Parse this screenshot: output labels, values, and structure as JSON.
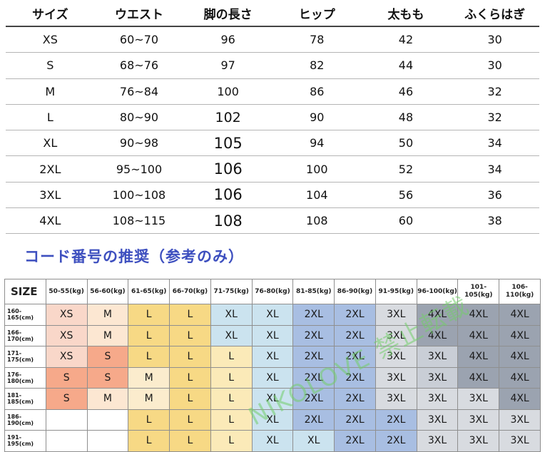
{
  "size_table": {
    "headers": [
      "サイズ",
      "ウエスト",
      "脚の長さ",
      "ヒップ",
      "太もも",
      "ふくらはぎ"
    ],
    "rows": [
      [
        "XS",
        "60~70",
        "96",
        "78",
        "42",
        "30"
      ],
      [
        "S",
        "68~76",
        "97",
        "82",
        "44",
        "30"
      ],
      [
        "M",
        "76~84",
        "100",
        "86",
        "46",
        "32"
      ],
      [
        "L",
        "80~90",
        "102",
        "90",
        "48",
        "32"
      ],
      [
        "XL",
        "90~98",
        "105",
        "94",
        "50",
        "34"
      ],
      [
        "2XL",
        "95~100",
        "106",
        "100",
        "52",
        "34"
      ],
      [
        "3XL",
        "100~108",
        "106",
        "104",
        "56",
        "36"
      ],
      [
        "4XL",
        "108~115",
        "108",
        "108",
        "60",
        "38"
      ]
    ]
  },
  "section_title": "コード番号の推奨（参考のみ）",
  "rec_table": {
    "corner": "SIZE",
    "weights": [
      "50-55(kg)",
      "56-60(kg)",
      "61-65(kg)",
      "66-70(kg)",
      "71-75(kg)",
      "76-80(kg)",
      "81-85(kg)",
      "86-90(kg)",
      "91-95(kg)",
      "96-100(kg)",
      "101-105(kg)",
      "106-110(kg)"
    ],
    "rows": [
      {
        "height": "160-165(cm)",
        "cells": [
          "XS",
          "M",
          "L",
          "L",
          "XL",
          "XL",
          "2XL",
          "2XL",
          "3XL",
          "4XL",
          "4XL",
          "4XL"
        ]
      },
      {
        "height": "166-170(cm)",
        "cells": [
          "XS",
          "M",
          "L",
          "L",
          "XL",
          "XL",
          "2XL",
          "2XL",
          "3XL",
          "4XL",
          "4XL",
          "4XL"
        ]
      },
      {
        "height": "171-175(cm)",
        "cells": [
          "XS",
          "S",
          "L",
          "L",
          "L",
          "XL",
          "2XL",
          "2XL",
          "3XL",
          "3XL",
          "4XL",
          "4XL"
        ]
      },
      {
        "height": "176-180(cm)",
        "cells": [
          "S",
          "S",
          "M",
          "L",
          "L",
          "XL",
          "2XL",
          "2XL",
          "3XL",
          "3XL",
          "4XL",
          "4XL"
        ]
      },
      {
        "height": "181-185(cm)",
        "cells": [
          "S",
          "M",
          "M",
          "L",
          "L",
          "XL",
          "2XL",
          "2XL",
          "3XL",
          "3XL",
          "3XL",
          "4XL"
        ]
      },
      {
        "height": "186-190(cm)",
        "cells": [
          "",
          "",
          "L",
          "L",
          "L",
          "XL",
          "2XL",
          "2XL",
          "2XL",
          "3XL",
          "3XL",
          "3XL"
        ]
      },
      {
        "height": "191-195(cm)",
        "cells": [
          "",
          "",
          "L",
          "L",
          "L",
          "XL",
          "XL",
          "2XL",
          "2XL",
          "3XL",
          "3XL",
          "3XL"
        ]
      }
    ],
    "colors": [
      [
        "c-xs",
        "c-m",
        "c-l",
        "c-l",
        "c-xl",
        "c-xl",
        "c-2xl",
        "c-2xl",
        "c-3xl2",
        "c-4xl",
        "c-4xl",
        "c-4xl"
      ],
      [
        "c-xs",
        "c-m",
        "c-l",
        "c-l",
        "c-xl",
        "c-xl",
        "c-2xl",
        "c-2xl",
        "c-3xl2",
        "c-4xl",
        "c-4xl",
        "c-4xl"
      ],
      [
        "c-xs",
        "c-s",
        "c-l",
        "c-l",
        "c-l2",
        "c-xl",
        "c-2xl",
        "c-2xl",
        "c-3xl2",
        "c-3xl",
        "c-4xl",
        "c-4xl"
      ],
      [
        "c-s",
        "c-s",
        "c-m2",
        "c-l",
        "c-l2",
        "c-xl",
        "c-2xl",
        "c-2xl",
        "c-3xl2",
        "c-3xl",
        "c-4xl",
        "c-4xl"
      ],
      [
        "c-s",
        "c-m",
        "c-m2",
        "c-l",
        "c-l2",
        "c-xl",
        "c-2xl",
        "c-2xl",
        "c-3xl2",
        "c-3xl2",
        "c-3xl2",
        "c-4xl"
      ],
      [
        "c-empty",
        "c-empty",
        "c-l",
        "c-l",
        "c-l2",
        "c-xl",
        "c-2xl",
        "c-2xl",
        "c-2xl",
        "c-3xl2",
        "c-3xl2",
        "c-3xl2"
      ],
      [
        "c-empty",
        "c-empty",
        "c-l",
        "c-l",
        "c-l2",
        "c-xl",
        "c-xl",
        "c-2xl",
        "c-2xl",
        "c-3xl2",
        "c-3xl2",
        "c-3xl2"
      ]
    ]
  },
  "watermark": "NIKOLOVE 禁止転載"
}
